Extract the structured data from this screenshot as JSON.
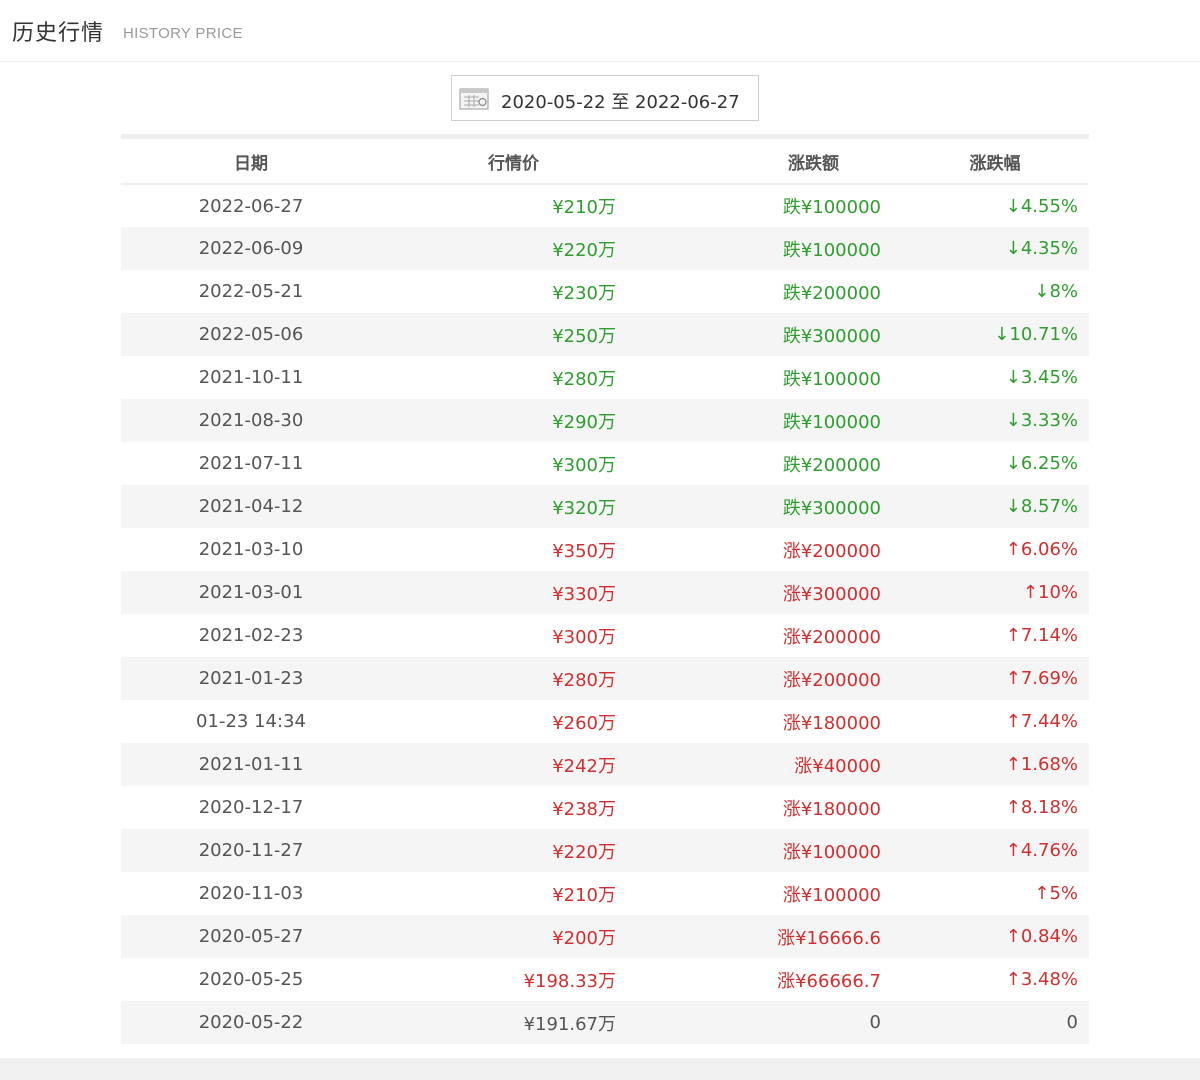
{
  "header": {
    "title": "历史行情",
    "subtitle": "HISTORY PRICE"
  },
  "date_range": {
    "text": "2020-05-22 至 2022-06-27",
    "icon": "calendar-icon"
  },
  "table": {
    "columns": [
      "日期",
      "行情价",
      "涨跌额",
      "涨跌幅"
    ],
    "rows": [
      {
        "date": "2022-06-27",
        "price": "¥210万",
        "change": "跌¥100000",
        "pct": "↓4.55%",
        "trend": "down"
      },
      {
        "date": "2022-06-09",
        "price": "¥220万",
        "change": "跌¥100000",
        "pct": "↓4.35%",
        "trend": "down"
      },
      {
        "date": "2022-05-21",
        "price": "¥230万",
        "change": "跌¥200000",
        "pct": "↓8%",
        "trend": "down"
      },
      {
        "date": "2022-05-06",
        "price": "¥250万",
        "change": "跌¥300000",
        "pct": "↓10.71%",
        "trend": "down"
      },
      {
        "date": "2021-10-11",
        "price": "¥280万",
        "change": "跌¥100000",
        "pct": "↓3.45%",
        "trend": "down"
      },
      {
        "date": "2021-08-30",
        "price": "¥290万",
        "change": "跌¥100000",
        "pct": "↓3.33%",
        "trend": "down"
      },
      {
        "date": "2021-07-11",
        "price": "¥300万",
        "change": "跌¥200000",
        "pct": "↓6.25%",
        "trend": "down"
      },
      {
        "date": "2021-04-12",
        "price": "¥320万",
        "change": "跌¥300000",
        "pct": "↓8.57%",
        "trend": "down"
      },
      {
        "date": "2021-03-10",
        "price": "¥350万",
        "change": "涨¥200000",
        "pct": "↑6.06%",
        "trend": "up"
      },
      {
        "date": "2021-03-01",
        "price": "¥330万",
        "change": "涨¥300000",
        "pct": "↑10%",
        "trend": "up"
      },
      {
        "date": "2021-02-23",
        "price": "¥300万",
        "change": "涨¥200000",
        "pct": "↑7.14%",
        "trend": "up"
      },
      {
        "date": "2021-01-23",
        "price": "¥280万",
        "change": "涨¥200000",
        "pct": "↑7.69%",
        "trend": "up"
      },
      {
        "date": "01-23 14:34",
        "price": "¥260万",
        "change": "涨¥180000",
        "pct": "↑7.44%",
        "trend": "up"
      },
      {
        "date": "2021-01-11",
        "price": "¥242万",
        "change": "涨¥40000",
        "pct": "↑1.68%",
        "trend": "up"
      },
      {
        "date": "2020-12-17",
        "price": "¥238万",
        "change": "涨¥180000",
        "pct": "↑8.18%",
        "trend": "up"
      },
      {
        "date": "2020-11-27",
        "price": "¥220万",
        "change": "涨¥100000",
        "pct": "↑4.76%",
        "trend": "up"
      },
      {
        "date": "2020-11-03",
        "price": "¥210万",
        "change": "涨¥100000",
        "pct": "↑5%",
        "trend": "up"
      },
      {
        "date": "2020-05-27",
        "price": "¥200万",
        "change": "涨¥16666.6",
        "pct": "↑0.84%",
        "trend": "up"
      },
      {
        "date": "2020-05-25",
        "price": "¥198.33万",
        "change": "涨¥66666.7",
        "pct": "↑3.48%",
        "trend": "up"
      },
      {
        "date": "2020-05-22",
        "price": "¥191.67万",
        "change": "0",
        "pct": "0",
        "trend": "flat"
      }
    ]
  },
  "colors": {
    "up": "#d12f2f",
    "down": "#2e9e2e",
    "flat": "#555555"
  }
}
